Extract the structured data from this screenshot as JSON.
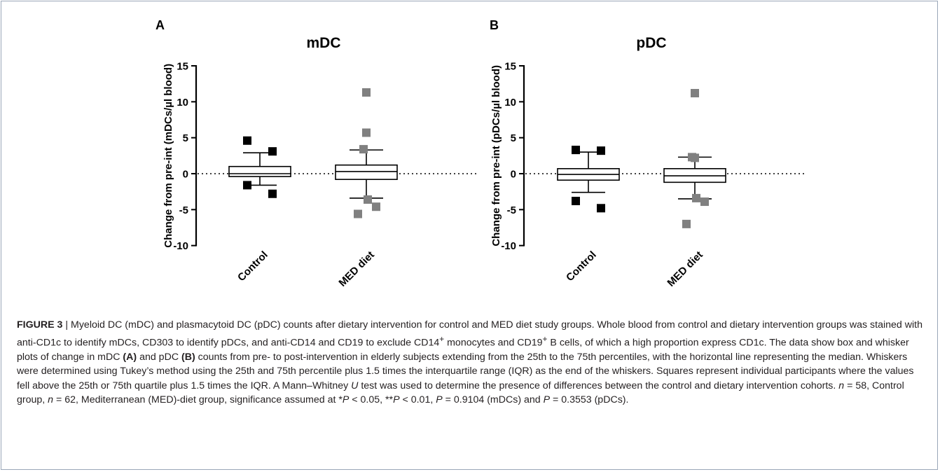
{
  "panels": [
    {
      "panel_letter": "A",
      "title": "mDC",
      "ylabel": "Change from pre-int (mDCs/µl blood)",
      "y_ticks": [
        "15",
        "10",
        "5",
        "0",
        "-5",
        "-10"
      ],
      "categories": [
        "Control",
        "MED diet"
      ]
    },
    {
      "panel_letter": "B",
      "title": "pDC",
      "ylabel": "Change from pre-int (pDCs/µl blood)",
      "y_ticks": [
        "15",
        "10",
        "5",
        "0",
        "-5",
        "-10"
      ],
      "categories": [
        "Control",
        "MED diet"
      ]
    }
  ],
  "chart_data": [
    {
      "type": "box",
      "title": "mDC",
      "ylabel": "Change from pre-int (mDCs/µl blood)",
      "ylim": [
        -10,
        15
      ],
      "y_ticks": [
        15,
        10,
        5,
        0,
        -5,
        -10
      ],
      "categories": [
        "Control",
        "MED diet"
      ],
      "reference_line": 0,
      "boxes": [
        {
          "category": "Control",
          "whisker_low": -1.6,
          "q1": -0.4,
          "median": 0.0,
          "q3": 1.0,
          "whisker_high": 2.9,
          "outliers": [
            4.6,
            3.1,
            -1.6,
            -2.8
          ],
          "color": "#000000"
        },
        {
          "category": "MED diet",
          "whisker_low": -3.4,
          "q1": -0.8,
          "median": 0.3,
          "q3": 1.2,
          "whisker_high": 3.3,
          "outliers": [
            11.3,
            5.7,
            3.4,
            -3.6,
            -4.6,
            -5.6
          ],
          "color": "#808080"
        }
      ]
    },
    {
      "type": "box",
      "title": "pDC",
      "ylabel": "Change from pre-int (pDCs/µl blood)",
      "ylim": [
        -10,
        15
      ],
      "y_ticks": [
        15,
        10,
        5,
        0,
        -5,
        -10
      ],
      "categories": [
        "Control",
        "MED diet"
      ],
      "reference_line": 0,
      "boxes": [
        {
          "category": "Control",
          "whisker_low": -2.6,
          "q1": -0.9,
          "median": -0.1,
          "q3": 0.7,
          "whisker_high": 3.0,
          "outliers": [
            3.3,
            3.2,
            -3.8,
            -4.8
          ],
          "color": "#000000"
        },
        {
          "category": "MED diet",
          "whisker_low": -3.5,
          "q1": -1.2,
          "median": -0.3,
          "q3": 0.7,
          "whisker_high": 2.3,
          "outliers": [
            11.2,
            2.2,
            2.3,
            -3.4,
            -3.9,
            -7.0
          ],
          "color": "#808080"
        }
      ]
    }
  ],
  "caption": {
    "fig_label": "FIGURE 3",
    "sep": " | ",
    "p1": "Myeloid DC (mDC) and plasmacytoid DC (pDC) counts after dietary intervention for control and MED diet study groups. Whole blood from control and dietary intervention groups was stained with anti-CD1c to identify mDCs, CD303 to identify pDCs, and anti-CD14 and CD19 to exclude CD14",
    "sup1": "+",
    "p2": " monocytes and CD19",
    "sup2": "+",
    "p3": " B cells, of which a high proportion express CD1c. The data show box and whisker plots of change in mDC ",
    "boldA": "(A)",
    "p4": " and pDC ",
    "boldB": "(B)",
    "p5": " counts from pre- to post-intervention in elderly subjects extending from the 25th to the 75th percentiles, with the horizontal line representing the median. Whiskers were determined using Tukey’s method using the 25th and 75th percentile plus 1.5 times the interquartile range (IQR) as the end of the whiskers. Squares represent individual participants where the values fell above the 25th or 75th quartile plus 1.5 times the IQR. A Mann–Whitney ",
    "itU": "U",
    "p6": " test was used to determine the presence of differences between the control and dietary intervention cohorts. ",
    "itn1": "n",
    "p7": " = 58, Control group, ",
    "itn2": "n",
    "p8": " = 62, Mediterranean (MED)-diet group, significance assumed at *",
    "itP1": "P",
    "p9": " < 0.05, **",
    "itP2": "P",
    "p10": " < 0.01, ",
    "itP3": "P",
    "p11": " = 0.9104 (mDCs) and ",
    "itP4": "P",
    "p12": " = 0.3553 (pDCs)."
  }
}
